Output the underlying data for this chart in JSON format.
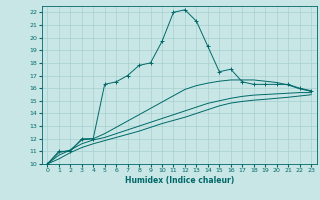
{
  "xlabel": "Humidex (Indice chaleur)",
  "ylabel": "",
  "bg_color": "#c8e6e6",
  "line_color": "#006868",
  "grid_color": "#a8d0d0",
  "xlim": [
    -0.5,
    23.5
  ],
  "ylim": [
    10,
    22.5
  ],
  "xticks": [
    0,
    1,
    2,
    3,
    4,
    5,
    6,
    7,
    8,
    9,
    10,
    11,
    12,
    13,
    14,
    15,
    16,
    17,
    18,
    19,
    20,
    21,
    22,
    23
  ],
  "yticks": [
    10,
    11,
    12,
    13,
    14,
    15,
    16,
    17,
    18,
    19,
    20,
    21,
    22
  ],
  "line1_x": [
    0,
    1,
    2,
    3,
    4,
    5,
    6,
    7,
    8,
    9,
    10,
    11,
    12,
    13,
    14,
    15,
    16,
    17,
    18,
    19,
    20,
    21,
    22,
    23
  ],
  "line1_y": [
    10.0,
    11.0,
    11.0,
    12.0,
    12.0,
    16.3,
    16.5,
    17.0,
    17.8,
    18.0,
    19.7,
    22.0,
    22.2,
    21.3,
    19.3,
    17.3,
    17.5,
    16.5,
    16.3,
    16.3,
    16.3,
    16.3,
    16.0,
    15.8
  ],
  "line2_x": [
    0,
    1,
    2,
    3,
    4,
    5,
    6,
    7,
    8,
    9,
    10,
    11,
    12,
    13,
    14,
    15,
    16,
    17,
    18,
    19,
    20,
    21,
    22,
    23
  ],
  "line2_y": [
    10.0,
    10.9,
    11.1,
    11.9,
    12.0,
    12.4,
    12.9,
    13.4,
    13.9,
    14.4,
    14.9,
    15.4,
    15.9,
    16.2,
    16.4,
    16.55,
    16.65,
    16.65,
    16.65,
    16.55,
    16.45,
    16.25,
    15.95,
    15.75
  ],
  "line3_x": [
    0,
    1,
    2,
    3,
    4,
    5,
    6,
    7,
    8,
    9,
    10,
    11,
    12,
    13,
    14,
    15,
    16,
    17,
    18,
    19,
    20,
    21,
    22,
    23
  ],
  "line3_y": [
    10.0,
    10.7,
    11.1,
    11.6,
    11.9,
    12.1,
    12.4,
    12.7,
    13.0,
    13.3,
    13.6,
    13.9,
    14.2,
    14.5,
    14.8,
    15.0,
    15.2,
    15.35,
    15.45,
    15.5,
    15.55,
    15.6,
    15.65,
    15.65
  ],
  "line4_x": [
    0,
    1,
    2,
    3,
    4,
    5,
    6,
    7,
    8,
    9,
    10,
    11,
    12,
    13,
    14,
    15,
    16,
    17,
    18,
    19,
    20,
    21,
    22,
    23
  ],
  "line4_y": [
    10.0,
    10.4,
    10.9,
    11.3,
    11.6,
    11.85,
    12.1,
    12.35,
    12.6,
    12.9,
    13.2,
    13.45,
    13.7,
    14.0,
    14.3,
    14.6,
    14.82,
    14.95,
    15.05,
    15.12,
    15.2,
    15.28,
    15.38,
    15.48
  ]
}
